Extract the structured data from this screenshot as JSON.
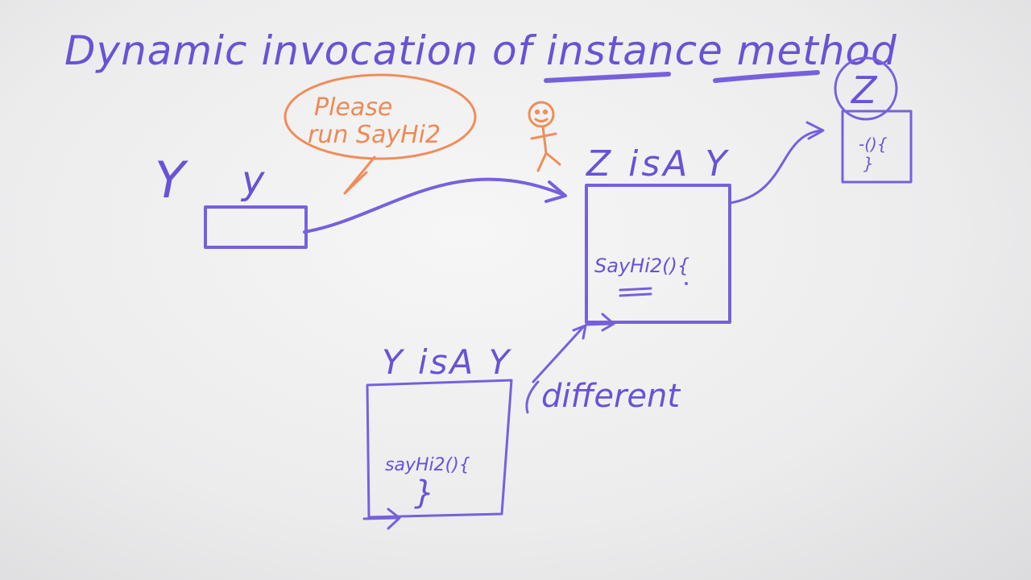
{
  "title": {
    "line": "Dynamic invocation of instance method",
    "underlined_words": [
      "instance",
      "method"
    ]
  },
  "speech_bubble": {
    "line1": "Please",
    "line2": "run SayHi2"
  },
  "reference": {
    "type_label": "Y",
    "var_label": "y"
  },
  "object_z": {
    "header": "Z isA Y",
    "method": "SayHi2(){"
  },
  "object_y": {
    "header": "Y isA Y",
    "method": "sayHi2(){",
    "close": "}"
  },
  "class_z": {
    "label": "Z",
    "content_line1": "-(){",
    "content_line2": "}"
  },
  "annotation": {
    "different": "different"
  },
  "colors": {
    "purple_ink": "#6a52d6",
    "orange_ink": "#ee8a55",
    "board": "#efeff0"
  }
}
